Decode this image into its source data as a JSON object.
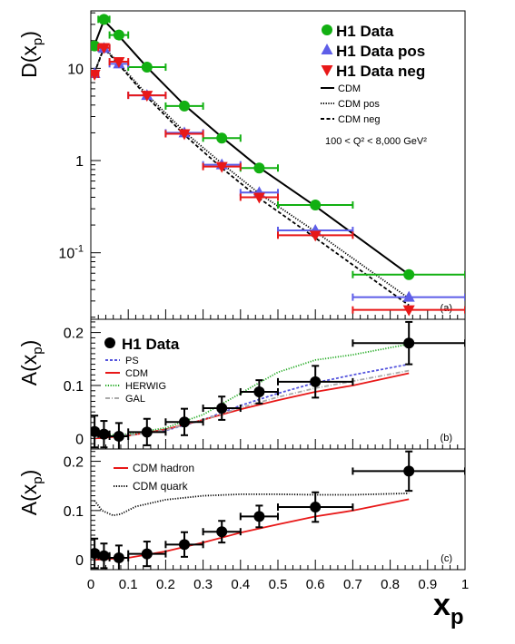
{
  "chart_data": [
    {
      "id": "a",
      "type": "scatter",
      "panel_label": "(a)",
      "ylabel": "D(x",
      "ylabel_sub": "p",
      "ylabel_close": ")",
      "y_scale": "log",
      "xlim": [
        0,
        1
      ],
      "ylim": [
        0.019,
        42
      ],
      "y_ticks": [
        {
          "value": 10,
          "label": "10"
        },
        {
          "value": 1,
          "label": "1"
        },
        {
          "value": 0.1,
          "label": "10",
          "exp": "-1"
        }
      ],
      "legend_position": "top-right",
      "legend": {
        "markers": [
          {
            "series": "h1",
            "label": "H1 Data"
          },
          {
            "series": "h1pos",
            "label": "H1 Data pos"
          },
          {
            "series": "h1neg",
            "label": "H1 Data neg"
          }
        ],
        "lines": [
          {
            "series": "cdm",
            "label": "CDM"
          },
          {
            "series": "cdmpos",
            "label": "CDM pos"
          },
          {
            "series": "cdmneg",
            "label": "CDM neg"
          }
        ],
        "note": "100 < Q² < 8,000 GeV²"
      },
      "series": [
        {
          "key": "h1",
          "name": "H1 Data",
          "kind": "points",
          "marker": "circle",
          "color": "#12b012",
          "points": [
            {
              "x": 0.01,
              "y": 17.5,
              "xerr": 0.01
            },
            {
              "x": 0.035,
              "y": 34,
              "xerr": 0.015
            },
            {
              "x": 0.075,
              "y": 23,
              "xerr": 0.025
            },
            {
              "x": 0.15,
              "y": 10.3,
              "xerr": 0.05
            },
            {
              "x": 0.25,
              "y": 3.9,
              "xerr": 0.05
            },
            {
              "x": 0.35,
              "y": 1.75,
              "xerr": 0.05
            },
            {
              "x": 0.45,
              "y": 0.83,
              "xerr": 0.05
            },
            {
              "x": 0.6,
              "y": 0.33,
              "xerr": 0.1
            },
            {
              "x": 0.85,
              "y": 0.058,
              "xerr": 0.15
            }
          ]
        },
        {
          "key": "h1pos",
          "name": "H1 Data pos",
          "kind": "points",
          "marker": "triangle-up",
          "color": "#5e5ee8",
          "points": [
            {
              "x": 0.01,
              "y": 8.8,
              "xerr": 0.01
            },
            {
              "x": 0.035,
              "y": 16.5,
              "xerr": 0.015
            },
            {
              "x": 0.075,
              "y": 11.2,
              "xerr": 0.025
            },
            {
              "x": 0.15,
              "y": 5.1,
              "xerr": 0.05
            },
            {
              "x": 0.25,
              "y": 2.0,
              "xerr": 0.05
            },
            {
              "x": 0.35,
              "y": 0.9,
              "xerr": 0.05
            },
            {
              "x": 0.45,
              "y": 0.45,
              "xerr": 0.05
            },
            {
              "x": 0.6,
              "y": 0.175,
              "xerr": 0.1
            },
            {
              "x": 0.85,
              "y": 0.033,
              "xerr": 0.15
            }
          ]
        },
        {
          "key": "h1neg",
          "name": "H1 Data neg",
          "kind": "points",
          "marker": "triangle-down",
          "color": "#e81818",
          "points": [
            {
              "x": 0.01,
              "y": 8.6,
              "xerr": 0.01
            },
            {
              "x": 0.035,
              "y": 16.8,
              "xerr": 0.015
            },
            {
              "x": 0.075,
              "y": 11.8,
              "xerr": 0.025
            },
            {
              "x": 0.15,
              "y": 5.1,
              "xerr": 0.05
            },
            {
              "x": 0.25,
              "y": 1.95,
              "xerr": 0.05
            },
            {
              "x": 0.35,
              "y": 0.86,
              "xerr": 0.05
            },
            {
              "x": 0.45,
              "y": 0.4,
              "xerr": 0.05
            },
            {
              "x": 0.6,
              "y": 0.155,
              "xerr": 0.1
            },
            {
              "x": 0.85,
              "y": 0.024,
              "xerr": 0.15
            }
          ]
        },
        {
          "key": "cdm",
          "name": "CDM",
          "kind": "line",
          "color": "#000000",
          "dash": "",
          "points": [
            {
              "x": 0.01,
              "y": 18
            },
            {
              "x": 0.035,
              "y": 33
            },
            {
              "x": 0.075,
              "y": 22.5
            },
            {
              "x": 0.15,
              "y": 10.3
            },
            {
              "x": 0.25,
              "y": 4.0
            },
            {
              "x": 0.35,
              "y": 1.8
            },
            {
              "x": 0.45,
              "y": 0.84
            },
            {
              "x": 0.6,
              "y": 0.32
            },
            {
              "x": 0.85,
              "y": 0.058
            }
          ]
        },
        {
          "key": "cdmpos",
          "name": "CDM pos",
          "kind": "line",
          "color": "#000000",
          "dash": "1.2,1.6",
          "points": [
            {
              "x": 0.01,
              "y": 9
            },
            {
              "x": 0.035,
              "y": 17
            },
            {
              "x": 0.075,
              "y": 11.3
            },
            {
              "x": 0.15,
              "y": 5.2
            },
            {
              "x": 0.25,
              "y": 2.05
            },
            {
              "x": 0.35,
              "y": 0.93
            },
            {
              "x": 0.45,
              "y": 0.44
            },
            {
              "x": 0.6,
              "y": 0.17
            },
            {
              "x": 0.85,
              "y": 0.032
            }
          ]
        },
        {
          "key": "cdmneg",
          "name": "CDM neg",
          "kind": "line",
          "color": "#000000",
          "dash": "4,2.5",
          "points": [
            {
              "x": 0.01,
              "y": 9
            },
            {
              "x": 0.035,
              "y": 16.5
            },
            {
              "x": 0.075,
              "y": 11
            },
            {
              "x": 0.15,
              "y": 4.9
            },
            {
              "x": 0.25,
              "y": 1.9
            },
            {
              "x": 0.35,
              "y": 0.83
            },
            {
              "x": 0.45,
              "y": 0.39
            },
            {
              "x": 0.6,
              "y": 0.145
            },
            {
              "x": 0.85,
              "y": 0.027
            }
          ]
        }
      ]
    },
    {
      "id": "b",
      "type": "scatter",
      "panel_label": "(b)",
      "ylabel": "A(x",
      "ylabel_sub": "p",
      "ylabel_close": ")",
      "y_scale": "linear",
      "xlim": [
        0,
        1
      ],
      "ylim": [
        -0.02,
        0.225
      ],
      "y_ticks": [
        {
          "value": 0,
          "label": "0"
        },
        {
          "value": 0.1,
          "label": "0.1"
        },
        {
          "value": 0.2,
          "label": "0.2"
        }
      ],
      "legend_position": "top-left",
      "legend": {
        "markers": [
          {
            "series": "h1",
            "label": "H1 Data"
          }
        ],
        "lines": [
          {
            "series": "ps",
            "label": "PS"
          },
          {
            "series": "cdm",
            "label": "CDM"
          },
          {
            "series": "herwig",
            "label": "HERWIG"
          },
          {
            "series": "gal",
            "label": "GAL"
          }
        ]
      },
      "series": [
        {
          "key": "h1",
          "name": "H1 Data",
          "kind": "points",
          "marker": "circle",
          "color": "#000000",
          "points": [
            {
              "x": 0.01,
              "y": 0.013,
              "xerr": 0.01,
              "yerr": 0.03
            },
            {
              "x": 0.035,
              "y": 0.008,
              "xerr": 0.015,
              "yerr": 0.025
            },
            {
              "x": 0.075,
              "y": 0.004,
              "xerr": 0.025,
              "yerr": 0.025
            },
            {
              "x": 0.15,
              "y": 0.012,
              "xerr": 0.05,
              "yerr": 0.025
            },
            {
              "x": 0.25,
              "y": 0.031,
              "xerr": 0.05,
              "yerr": 0.025
            },
            {
              "x": 0.35,
              "y": 0.057,
              "xerr": 0.05,
              "yerr": 0.022
            },
            {
              "x": 0.45,
              "y": 0.088,
              "xerr": 0.05,
              "yerr": 0.022
            },
            {
              "x": 0.6,
              "y": 0.107,
              "xerr": 0.1,
              "yerr": 0.03
            },
            {
              "x": 0.85,
              "y": 0.18,
              "xerr": 0.15,
              "yerr": 0.04
            }
          ]
        },
        {
          "key": "ps",
          "name": "PS",
          "kind": "line",
          "color": "#5555dd",
          "dash": "3,2",
          "points": [
            {
              "x": 0.01,
              "y": 0.005
            },
            {
              "x": 0.1,
              "y": 0.006
            },
            {
              "x": 0.2,
              "y": 0.015
            },
            {
              "x": 0.3,
              "y": 0.035
            },
            {
              "x": 0.4,
              "y": 0.062
            },
            {
              "x": 0.5,
              "y": 0.085
            },
            {
              "x": 0.6,
              "y": 0.105
            },
            {
              "x": 0.7,
              "y": 0.12
            },
            {
              "x": 0.85,
              "y": 0.14
            }
          ]
        },
        {
          "key": "cdm",
          "name": "CDM",
          "kind": "line",
          "color": "#e81818",
          "dash": "",
          "points": [
            {
              "x": 0.01,
              "y": 0.0
            },
            {
              "x": 0.1,
              "y": 0.005
            },
            {
              "x": 0.2,
              "y": 0.017
            },
            {
              "x": 0.3,
              "y": 0.035
            },
            {
              "x": 0.4,
              "y": 0.055
            },
            {
              "x": 0.5,
              "y": 0.072
            },
            {
              "x": 0.6,
              "y": 0.088
            },
            {
              "x": 0.7,
              "y": 0.1
            },
            {
              "x": 0.85,
              "y": 0.123
            }
          ]
        },
        {
          "key": "herwig",
          "name": "HERWIG",
          "kind": "line",
          "color": "#22aa22",
          "dash": "1.2,1.6",
          "points": [
            {
              "x": 0.01,
              "y": 0.005
            },
            {
              "x": 0.1,
              "y": 0.008
            },
            {
              "x": 0.2,
              "y": 0.02
            },
            {
              "x": 0.3,
              "y": 0.045
            },
            {
              "x": 0.35,
              "y": 0.065
            },
            {
              "x": 0.4,
              "y": 0.085
            },
            {
              "x": 0.45,
              "y": 0.105
            },
            {
              "x": 0.5,
              "y": 0.125
            },
            {
              "x": 0.6,
              "y": 0.148
            },
            {
              "x": 0.7,
              "y": 0.158
            },
            {
              "x": 0.85,
              "y": 0.178
            }
          ]
        },
        {
          "key": "gal",
          "name": "GAL",
          "kind": "line",
          "color": "#aaaaaa",
          "dash": "5,2,1,2",
          "points": [
            {
              "x": 0.01,
              "y": 0.002
            },
            {
              "x": 0.1,
              "y": 0.005
            },
            {
              "x": 0.2,
              "y": 0.016
            },
            {
              "x": 0.3,
              "y": 0.035
            },
            {
              "x": 0.4,
              "y": 0.058
            },
            {
              "x": 0.5,
              "y": 0.078
            },
            {
              "x": 0.6,
              "y": 0.095
            },
            {
              "x": 0.7,
              "y": 0.108
            },
            {
              "x": 0.85,
              "y": 0.128
            }
          ]
        }
      ]
    },
    {
      "id": "c",
      "type": "scatter",
      "panel_label": "(c)",
      "ylabel": "A(x",
      "ylabel_sub": "p",
      "ylabel_close": ")",
      "xlabel": "x",
      "xlabel_sub": "p",
      "y_scale": "linear",
      "xlim": [
        0,
        1
      ],
      "ylim": [
        -0.02,
        0.225
      ],
      "y_ticks": [
        {
          "value": 0,
          "label": "0"
        },
        {
          "value": 0.1,
          "label": "0.1"
        },
        {
          "value": 0.2,
          "label": "0.2"
        }
      ],
      "x_ticks": [
        {
          "value": 0,
          "label": "0"
        },
        {
          "value": 0.1,
          "label": "0.1"
        },
        {
          "value": 0.2,
          "label": "0.2"
        },
        {
          "value": 0.3,
          "label": "0.3"
        },
        {
          "value": 0.4,
          "label": "0.4"
        },
        {
          "value": 0.5,
          "label": "0.5"
        },
        {
          "value": 0.6,
          "label": "0.6"
        },
        {
          "value": 0.7,
          "label": "0.7"
        },
        {
          "value": 0.8,
          "label": "0.8"
        },
        {
          "value": 0.9,
          "label": "0.9"
        },
        {
          "value": 1,
          "label": "1"
        }
      ],
      "legend_position": "top-left",
      "legend": {
        "markers": [],
        "lines": [
          {
            "series": "hadron",
            "label": "CDM hadron"
          },
          {
            "series": "quark",
            "label": "CDM quark"
          }
        ]
      },
      "series": [
        {
          "key": "h1",
          "name": "",
          "kind": "points",
          "marker": "circle",
          "color": "#000000",
          "points": [
            {
              "x": 0.01,
              "y": 0.013,
              "xerr": 0.01,
              "yerr": 0.03
            },
            {
              "x": 0.035,
              "y": 0.008,
              "xerr": 0.015,
              "yerr": 0.025
            },
            {
              "x": 0.075,
              "y": 0.004,
              "xerr": 0.025,
              "yerr": 0.025
            },
            {
              "x": 0.15,
              "y": 0.012,
              "xerr": 0.05,
              "yerr": 0.025
            },
            {
              "x": 0.25,
              "y": 0.031,
              "xerr": 0.05,
              "yerr": 0.025
            },
            {
              "x": 0.35,
              "y": 0.057,
              "xerr": 0.05,
              "yerr": 0.022
            },
            {
              "x": 0.45,
              "y": 0.088,
              "xerr": 0.05,
              "yerr": 0.022
            },
            {
              "x": 0.6,
              "y": 0.107,
              "xerr": 0.1,
              "yerr": 0.03
            },
            {
              "x": 0.85,
              "y": 0.18,
              "xerr": 0.15,
              "yerr": 0.04
            }
          ]
        },
        {
          "key": "hadron",
          "name": "CDM hadron",
          "kind": "line",
          "color": "#e81818",
          "dash": "",
          "points": [
            {
              "x": 0.01,
              "y": 0.0
            },
            {
              "x": 0.1,
              "y": 0.004
            },
            {
              "x": 0.2,
              "y": 0.017
            },
            {
              "x": 0.3,
              "y": 0.035
            },
            {
              "x": 0.4,
              "y": 0.055
            },
            {
              "x": 0.5,
              "y": 0.072
            },
            {
              "x": 0.6,
              "y": 0.088
            },
            {
              "x": 0.7,
              "y": 0.1
            },
            {
              "x": 0.85,
              "y": 0.123
            }
          ]
        },
        {
          "key": "quark",
          "name": "CDM quark",
          "kind": "line",
          "color": "#000000",
          "dash": "1.2,1.6",
          "points": [
            {
              "x": 0.01,
              "y": 0.12
            },
            {
              "x": 0.03,
              "y": 0.1
            },
            {
              "x": 0.06,
              "y": 0.09
            },
            {
              "x": 0.08,
              "y": 0.093
            },
            {
              "x": 0.12,
              "y": 0.108
            },
            {
              "x": 0.2,
              "y": 0.122
            },
            {
              "x": 0.3,
              "y": 0.13
            },
            {
              "x": 0.4,
              "y": 0.133
            },
            {
              "x": 0.5,
              "y": 0.133
            },
            {
              "x": 0.6,
              "y": 0.132
            },
            {
              "x": 0.7,
              "y": 0.132
            },
            {
              "x": 0.85,
              "y": 0.135
            }
          ]
        }
      ]
    }
  ]
}
